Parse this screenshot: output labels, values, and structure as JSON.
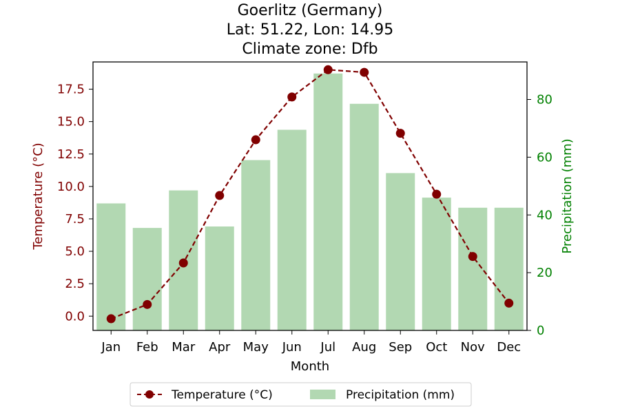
{
  "chart_data": {
    "type": "bar+line",
    "title_lines": [
      "Goerlitz (Germany)",
      "Lat: 51.22, Lon: 14.95",
      "Climate zone: Dfb"
    ],
    "categories": [
      "Jan",
      "Feb",
      "Mar",
      "Apr",
      "May",
      "Jun",
      "Jul",
      "Aug",
      "Sep",
      "Oct",
      "Nov",
      "Dec"
    ],
    "xlabel": "Month",
    "temperature": {
      "name": "Temperature (°C)",
      "axis_label": "Temperature (°C)",
      "values": [
        -0.2,
        0.9,
        4.1,
        9.3,
        13.6,
        16.9,
        19.0,
        18.8,
        14.1,
        9.4,
        4.6,
        1.0
      ],
      "ylim": [
        -1.1,
        19.6
      ],
      "ticks": [
        "0.0",
        "2.5",
        "5.0",
        "7.5",
        "10.0",
        "12.5",
        "15.0",
        "17.5"
      ],
      "color": "#800000"
    },
    "precipitation": {
      "name": "Precipitation (mm)",
      "axis_label": "Precipitation (mm)",
      "values": [
        44,
        35.5,
        48.5,
        36,
        59,
        69.5,
        89,
        78.5,
        54.5,
        46,
        42.5,
        42.5
      ],
      "ylim": [
        0,
        93
      ],
      "ticks": [
        "0",
        "20",
        "40",
        "60",
        "80"
      ],
      "color": "#b2d8b2",
      "axis_color": "#008000"
    },
    "legend_position": "bottom-center"
  }
}
